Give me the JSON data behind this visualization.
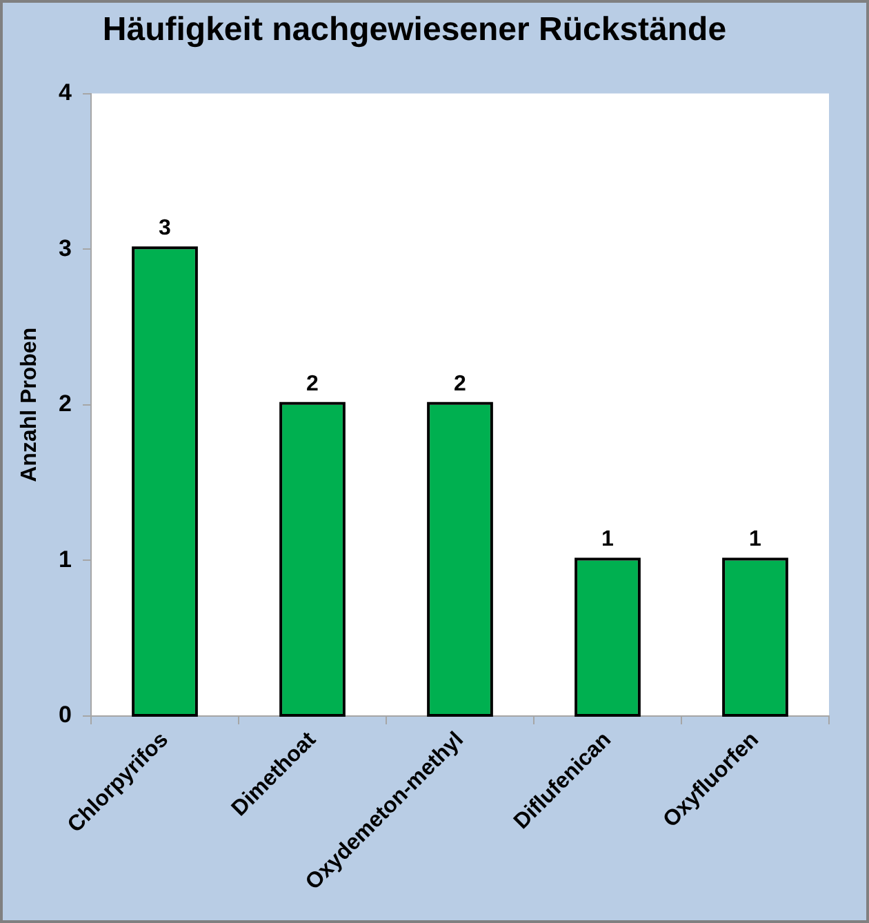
{
  "chart_data": {
    "type": "bar",
    "title": "Häufigkeit nachgewiesener Rückstände",
    "ylabel": "Anzahl Proben",
    "categories": [
      "Chlorpyrifos",
      "Dimethoat",
      "Oxydemeton-methyl",
      "Diflufenican",
      "Oxyfluorfen"
    ],
    "values": [
      3,
      2,
      2,
      1,
      1
    ],
    "color": "#00b050",
    "ylim": [
      0,
      4
    ],
    "yticks": [
      0,
      1,
      2,
      3,
      4
    ],
    "data_labels": true,
    "legend": false
  }
}
